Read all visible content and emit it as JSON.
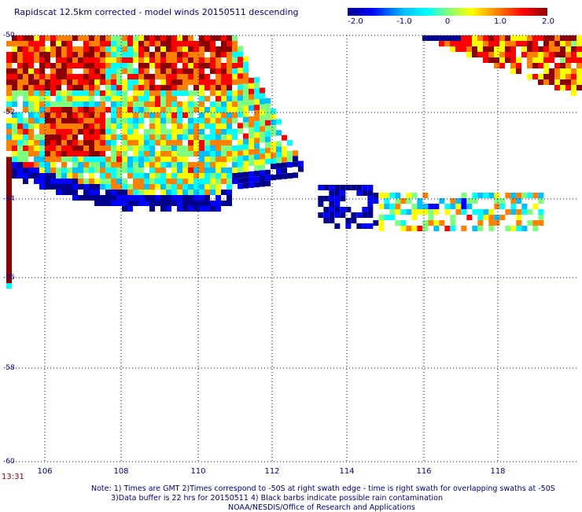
{
  "title": "Rapidscat 12.5km corrected - model winds 20150511 descending",
  "colorbar": {
    "labels": [
      "-2.0",
      "-1.0",
      "0",
      "1.0",
      "2.0"
    ],
    "colors": [
      "#00008b",
      "#0000ff",
      "#00bfff",
      "#00ffff",
      "#7fff7f",
      "#ffff00",
      "#ff7f00",
      "#ff0000",
      "#8b0000"
    ]
  },
  "chart_data": {
    "type": "heatmap",
    "title": "Rapidscat 12.5km corrected - model winds 20150511 descending",
    "xlim": [
      105,
      120
    ],
    "ylim": [
      -60,
      -50
    ],
    "x_ticks": [
      "106",
      "108",
      "110",
      "112",
      "114",
      "116",
      "118"
    ],
    "y_ticks": [
      "-50",
      "-52",
      "-54",
      "-56",
      "-58",
      "-60"
    ],
    "grid": true,
    "value_range": [
      -2.0,
      2.0
    ],
    "swaths": [
      {
        "region": "west",
        "lon": [
          105,
          112.8
        ],
        "lat": [
          -54.9,
          -50
        ],
        "dominant": "mixed, positive north, negative south edge"
      },
      {
        "region": "central",
        "lon": [
          113.2,
          119
        ],
        "lat": [
          -54.9,
          -53.6
        ],
        "dominant": "near zero to negative"
      },
      {
        "region": "northeast",
        "lon": [
          115.8,
          120
        ],
        "lat": [
          -51.3,
          -50
        ],
        "dominant": "positive"
      }
    ]
  },
  "time_label": "13:31",
  "notes": [
    "Note: 1) Times are GMT 2)Times correspond to -50S at right swath edge - time is right swath for overlapping swaths at -50S",
    "3)Data buffer is 22 hrs for 20150511 4) Black barbs indicate possible rain contamination",
    "NOAA/NESDIS/Office of Research and Applications"
  ]
}
